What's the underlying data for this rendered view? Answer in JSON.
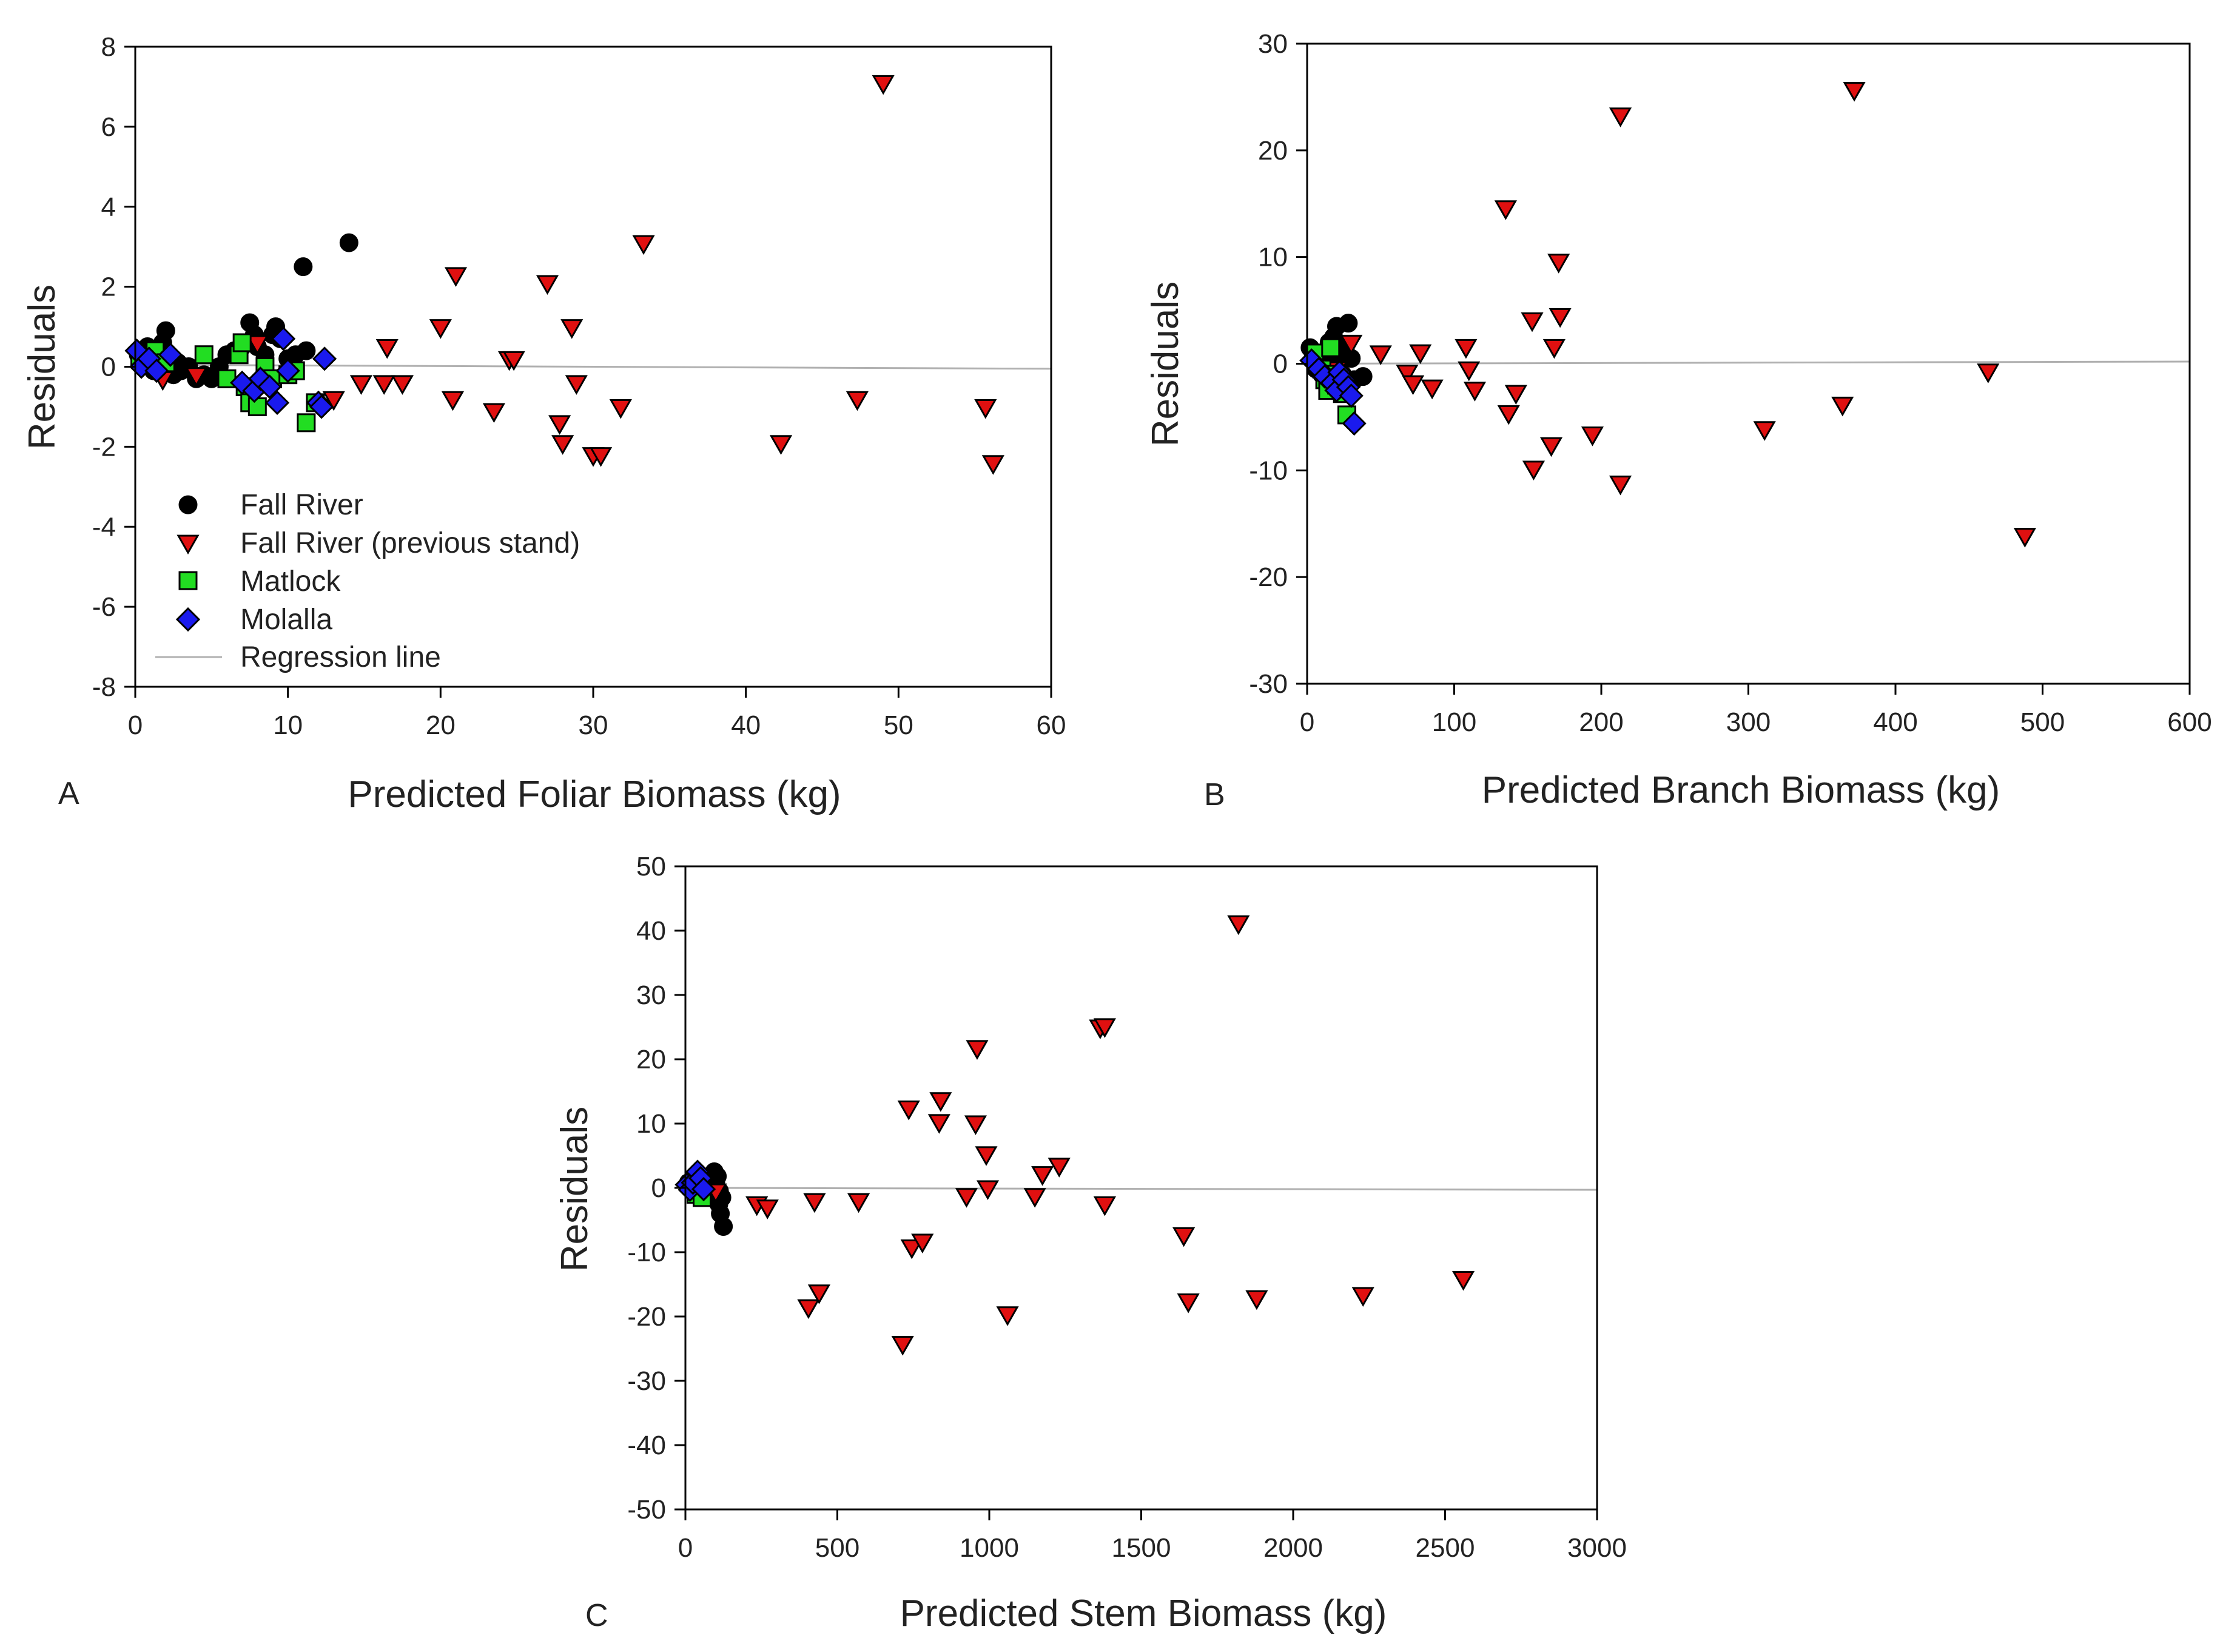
{
  "figure": {
    "panels": [
      "A",
      "B",
      "C"
    ]
  },
  "colors": {
    "fall_river": "#000000",
    "previous_stand": "#e01010",
    "matlock": "#22dd22",
    "molalla": "#1a1aee",
    "regression": "#b0b0b0",
    "axis": "#000000"
  },
  "legend": {
    "items": [
      {
        "label": "Fall River",
        "marker": "circle",
        "series": "fall_river"
      },
      {
        "label": "Fall River (previous stand)",
        "marker": "triangle-down",
        "series": "previous_stand"
      },
      {
        "label": "Matlock",
        "marker": "square",
        "series": "matlock"
      },
      {
        "label": "Molalla",
        "marker": "diamond",
        "series": "molalla"
      },
      {
        "label": "Regression line",
        "marker": "line",
        "series": "regression"
      }
    ]
  },
  "chart_data": [
    {
      "panel": "A",
      "type": "scatter",
      "xlabel": "Predicted Foliar Biomass (kg)",
      "ylabel": "Residuals",
      "xlim": [
        0,
        60
      ],
      "ylim": [
        -8,
        8
      ],
      "xticks": [
        0,
        10,
        20,
        30,
        40,
        50,
        60
      ],
      "yticks": [
        -8,
        -6,
        -4,
        -2,
        0,
        2,
        4,
        6,
        8
      ],
      "regression": [
        [
          0,
          0.05
        ],
        [
          60,
          -0.05
        ]
      ],
      "series": [
        {
          "name": "Fall River",
          "key": "fall_river",
          "marker": "circle",
          "points": [
            [
              0.2,
              0.3
            ],
            [
              0.5,
              0.1
            ],
            [
              0.8,
              0.5
            ],
            [
              1.0,
              0.2
            ],
            [
              1.2,
              -0.1
            ],
            [
              1.5,
              0.4
            ],
            [
              1.8,
              0.6
            ],
            [
              2.0,
              0.9
            ],
            [
              2.2,
              0.3
            ],
            [
              2.5,
              -0.2
            ],
            [
              2.8,
              0.1
            ],
            [
              3.0,
              -0.1
            ],
            [
              3.5,
              0.0
            ],
            [
              4.0,
              -0.3
            ],
            [
              4.5,
              -0.2
            ],
            [
              5.0,
              -0.3
            ],
            [
              5.5,
              0.0
            ],
            [
              6.0,
              0.3
            ],
            [
              6.5,
              0.4
            ],
            [
              7.0,
              0.5
            ],
            [
              7.5,
              1.1
            ],
            [
              7.8,
              0.8
            ],
            [
              8.0,
              0.5
            ],
            [
              8.5,
              0.3
            ],
            [
              9.0,
              0.8
            ],
            [
              9.2,
              1.0
            ],
            [
              9.5,
              0.7
            ],
            [
              10.0,
              0.2
            ],
            [
              10.5,
              0.3
            ],
            [
              11.0,
              2.5
            ],
            [
              11.2,
              0.4
            ],
            [
              14.0,
              3.1
            ]
          ]
        },
        {
          "name": "Fall River (previous stand)",
          "key": "previous_stand",
          "marker": "triangle-down",
          "points": [
            [
              1.8,
              -0.3
            ],
            [
              4.0,
              -0.2
            ],
            [
              8.0,
              0.6
            ],
            [
              13.0,
              -0.8
            ],
            [
              14.8,
              -0.4
            ],
            [
              16.3,
              -0.4
            ],
            [
              16.5,
              0.5
            ],
            [
              17.5,
              -0.4
            ],
            [
              20.0,
              1.0
            ],
            [
              20.8,
              -0.8
            ],
            [
              21.0,
              2.3
            ],
            [
              23.5,
              -1.1
            ],
            [
              24.5,
              0.2
            ],
            [
              24.8,
              0.2
            ],
            [
              27.0,
              2.1
            ],
            [
              27.8,
              -1.4
            ],
            [
              28.0,
              -1.9
            ],
            [
              28.6,
              1.0
            ],
            [
              28.9,
              -0.4
            ],
            [
              30.0,
              -2.2
            ],
            [
              30.5,
              -2.2
            ],
            [
              31.8,
              -1.0
            ],
            [
              33.3,
              3.1
            ],
            [
              42.3,
              -1.9
            ],
            [
              47.3,
              -0.8
            ],
            [
              49.0,
              7.1
            ],
            [
              55.7,
              -1.0
            ],
            [
              56.2,
              -2.4
            ]
          ]
        },
        {
          "name": "Matlock",
          "key": "matlock",
          "marker": "square",
          "points": [
            [
              0.3,
              0.2
            ],
            [
              1.3,
              0.4
            ],
            [
              2.0,
              0.1
            ],
            [
              4.5,
              0.3
            ],
            [
              6.0,
              -0.3
            ],
            [
              6.8,
              0.3
            ],
            [
              7.0,
              0.6
            ],
            [
              7.2,
              -0.5
            ],
            [
              7.5,
              -0.9
            ],
            [
              8.0,
              -1.0
            ],
            [
              8.5,
              0.0
            ],
            [
              9.0,
              -0.3
            ],
            [
              10.0,
              -0.2
            ],
            [
              10.5,
              -0.1
            ],
            [
              11.2,
              -1.4
            ],
            [
              11.8,
              -0.9
            ]
          ]
        },
        {
          "name": "Molalla",
          "key": "molalla",
          "marker": "diamond",
          "points": [
            [
              0.1,
              0.4
            ],
            [
              0.4,
              0.0
            ],
            [
              0.9,
              0.2
            ],
            [
              1.4,
              -0.1
            ],
            [
              2.3,
              0.3
            ],
            [
              7.0,
              -0.4
            ],
            [
              7.8,
              -0.6
            ],
            [
              8.2,
              -0.3
            ],
            [
              8.8,
              -0.5
            ],
            [
              9.3,
              -0.9
            ],
            [
              9.7,
              0.7
            ],
            [
              10.0,
              -0.1
            ],
            [
              12.0,
              -0.9
            ],
            [
              12.2,
              -1.0
            ],
            [
              12.4,
              0.2
            ]
          ]
        }
      ]
    },
    {
      "panel": "B",
      "type": "scatter",
      "xlabel": "Predicted Branch Biomass (kg)",
      "ylabel": "Residuals",
      "xlim": [
        0,
        600
      ],
      "ylim": [
        -30,
        30
      ],
      "xticks": [
        0,
        100,
        200,
        300,
        400,
        500,
        600
      ],
      "yticks": [
        -30,
        -20,
        -10,
        0,
        10,
        20,
        30
      ],
      "regression": [
        [
          0,
          0.0
        ],
        [
          600,
          0.2
        ]
      ],
      "series": [
        {
          "name": "Fall River",
          "key": "fall_river",
          "marker": "circle",
          "points": [
            [
              2,
              1.5
            ],
            [
              4,
              0.5
            ],
            [
              6,
              -0.5
            ],
            [
              8,
              1.0
            ],
            [
              10,
              -1.0
            ],
            [
              12,
              0.5
            ],
            [
              15,
              2.0
            ],
            [
              18,
              2.5
            ],
            [
              20,
              3.5
            ],
            [
              22,
              0.0
            ],
            [
              24,
              -1.0
            ],
            [
              26,
              1.5
            ],
            [
              28,
              3.8
            ],
            [
              30,
              0.5
            ],
            [
              32,
              -1.5
            ],
            [
              38,
              -1.2
            ]
          ]
        },
        {
          "name": "Fall River (previous stand)",
          "key": "previous_stand",
          "marker": "triangle-down",
          "points": [
            [
              20,
              -0.5
            ],
            [
              30,
              2.0
            ],
            [
              50,
              1.0
            ],
            [
              68,
              -0.8
            ],
            [
              72,
              -1.8
            ],
            [
              77,
              1.1
            ],
            [
              85,
              -2.2
            ],
            [
              108,
              1.6
            ],
            [
              110,
              -0.5
            ],
            [
              114,
              -2.4
            ],
            [
              135,
              14.6
            ],
            [
              137,
              -4.6
            ],
            [
              142,
              -2.7
            ],
            [
              153,
              4.1
            ],
            [
              154,
              -9.8
            ],
            [
              166,
              -7.6
            ],
            [
              168,
              1.6
            ],
            [
              171,
              9.6
            ],
            [
              172,
              4.5
            ],
            [
              194,
              -6.6
            ],
            [
              213,
              23.3
            ],
            [
              213,
              -11.2
            ],
            [
              311,
              -6.1
            ],
            [
              364,
              -3.8
            ],
            [
              372,
              25.7
            ],
            [
              463,
              -0.7
            ],
            [
              488,
              -16.1
            ]
          ]
        },
        {
          "name": "Matlock",
          "key": "matlock",
          "marker": "square",
          "points": [
            [
              5,
              1.0
            ],
            [
              10,
              -0.5
            ],
            [
              12,
              -1.5
            ],
            [
              14,
              -2.5
            ],
            [
              16,
              1.5
            ],
            [
              18,
              -1.0
            ],
            [
              20,
              -2.0
            ],
            [
              24,
              -2.8
            ],
            [
              27,
              -4.8
            ]
          ]
        },
        {
          "name": "Molalla",
          "key": "molalla",
          "marker": "diamond",
          "points": [
            [
              3,
              0.3
            ],
            [
              8,
              -0.5
            ],
            [
              12,
              -1.2
            ],
            [
              17,
              -1.8
            ],
            [
              20,
              -2.5
            ],
            [
              22,
              -0.8
            ],
            [
              25,
              -1.5
            ],
            [
              28,
              -2.2
            ],
            [
              30,
              -3.0
            ],
            [
              32,
              -5.6
            ]
          ]
        }
      ]
    },
    {
      "panel": "C",
      "type": "scatter",
      "xlabel": "Predicted Stem Biomass (kg)",
      "ylabel": "Residuals",
      "xlim": [
        0,
        3000
      ],
      "ylim": [
        -50,
        50
      ],
      "xticks": [
        0,
        500,
        1000,
        1500,
        2000,
        2500,
        3000
      ],
      "yticks": [
        -50,
        -40,
        -30,
        -20,
        -10,
        0,
        10,
        20,
        30,
        40,
        50
      ],
      "regression": [
        [
          0,
          0.0
        ],
        [
          3000,
          -0.3
        ]
      ],
      "series": [
        {
          "name": "Fall River",
          "key": "fall_river",
          "marker": "circle",
          "points": [
            [
              10,
              0.8
            ],
            [
              20,
              0.2
            ],
            [
              30,
              1.0
            ],
            [
              40,
              -0.5
            ],
            [
              60,
              0.3
            ],
            [
              80,
              -0.8
            ],
            [
              90,
              1.5
            ],
            [
              95,
              2.5
            ],
            [
              100,
              0.8
            ],
            [
              105,
              1.8
            ],
            [
              108,
              -1.5
            ],
            [
              110,
              -2.5
            ],
            [
              112,
              -0.5
            ],
            [
              115,
              -4.0
            ],
            [
              120,
              -1.5
            ],
            [
              125,
              -6.0
            ]
          ]
        },
        {
          "name": "Fall River (previous stand)",
          "key": "previous_stand",
          "marker": "triangle-down",
          "points": [
            [
              100,
              -0.5
            ],
            [
              235,
              -2.5
            ],
            [
              270,
              -3.0
            ],
            [
              405,
              -18.5
            ],
            [
              425,
              -2.0
            ],
            [
              440,
              -16.2
            ],
            [
              570,
              -2.0
            ],
            [
              715,
              -24.2
            ],
            [
              735,
              12.4
            ],
            [
              745,
              -9.2
            ],
            [
              780,
              -8.3
            ],
            [
              835,
              10.3
            ],
            [
              840,
              13.7
            ],
            [
              925,
              -1.2
            ],
            [
              955,
              10.1
            ],
            [
              960,
              21.8
            ],
            [
              990,
              5.3
            ],
            [
              995,
              0.0
            ],
            [
              1060,
              -19.6
            ],
            [
              1150,
              -1.2
            ],
            [
              1175,
              2.2
            ],
            [
              1230,
              3.5
            ],
            [
              1365,
              25.0
            ],
            [
              1380,
              25.2
            ],
            [
              1380,
              -2.5
            ],
            [
              1640,
              -7.3
            ],
            [
              1655,
              -17.6
            ],
            [
              1820,
              41.2
            ],
            [
              1880,
              -17.1
            ],
            [
              2230,
              -16.6
            ],
            [
              2560,
              -14.1
            ]
          ]
        },
        {
          "name": "Matlock",
          "key": "matlock",
          "marker": "square",
          "points": [
            [
              20,
              0.5
            ],
            [
              35,
              -1.0
            ],
            [
              45,
              1.5
            ],
            [
              55,
              -1.5
            ]
          ]
        },
        {
          "name": "Molalla",
          "key": "molalla",
          "marker": "diamond",
          "points": [
            [
              5,
              0.5
            ],
            [
              15,
              -0.3
            ],
            [
              25,
              0.8
            ],
            [
              40,
              2.5
            ],
            [
              50,
              1.5
            ],
            [
              60,
              -0.2
            ]
          ]
        }
      ]
    }
  ]
}
